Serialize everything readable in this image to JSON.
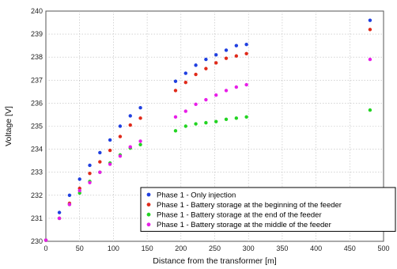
{
  "chart_data": {
    "type": "scatter",
    "xlabel": "Distance from the transformer [m]",
    "ylabel": "Voltage [V]",
    "xlim": [
      0,
      500
    ],
    "ylim": [
      230,
      240
    ],
    "xticks": [
      0,
      50,
      100,
      150,
      200,
      250,
      300,
      350,
      400,
      450,
      500
    ],
    "yticks": [
      230,
      231,
      232,
      233,
      234,
      235,
      236,
      237,
      238,
      239,
      240
    ],
    "grid": true,
    "legend_position": "bottom-right",
    "series": [
      {
        "name": "Phase 1 - Only injection",
        "color": "#1f3fe0",
        "points": [
          [
            0,
            230.05
          ],
          [
            20,
            231.25
          ],
          [
            35,
            232.0
          ],
          [
            50,
            232.7
          ],
          [
            65,
            233.3
          ],
          [
            80,
            233.85
          ],
          [
            95,
            234.4
          ],
          [
            110,
            235.0
          ],
          [
            125,
            235.45
          ],
          [
            140,
            235.8
          ],
          [
            192,
            236.95
          ],
          [
            207,
            237.3
          ],
          [
            222,
            237.65
          ],
          [
            237,
            237.9
          ],
          [
            252,
            238.1
          ],
          [
            267,
            238.3
          ],
          [
            282,
            238.5
          ],
          [
            297,
            238.55
          ],
          [
            480,
            239.6
          ]
        ]
      },
      {
        "name": "Phase 1 - Battery storage at the beginning of the feeder",
        "color": "#e02a1a",
        "points": [
          [
            0,
            230.05
          ],
          [
            20,
            231.0
          ],
          [
            35,
            231.65
          ],
          [
            50,
            232.3
          ],
          [
            65,
            232.95
          ],
          [
            80,
            233.45
          ],
          [
            95,
            233.95
          ],
          [
            110,
            234.55
          ],
          [
            125,
            235.05
          ],
          [
            140,
            235.35
          ],
          [
            192,
            236.55
          ],
          [
            207,
            236.9
          ],
          [
            222,
            237.25
          ],
          [
            237,
            237.5
          ],
          [
            252,
            237.75
          ],
          [
            267,
            237.95
          ],
          [
            282,
            238.05
          ],
          [
            297,
            238.15
          ],
          [
            480,
            239.2
          ]
        ]
      },
      {
        "name": "Phase 1 - Battery storage at the end of the feeder",
        "color": "#22d422",
        "points": [
          [
            0,
            230.05
          ],
          [
            20,
            231.0
          ],
          [
            35,
            231.6
          ],
          [
            50,
            232.1
          ],
          [
            65,
            232.6
          ],
          [
            80,
            233.0
          ],
          [
            95,
            233.4
          ],
          [
            110,
            233.75
          ],
          [
            125,
            234.05
          ],
          [
            140,
            234.2
          ],
          [
            192,
            234.8
          ],
          [
            207,
            235.0
          ],
          [
            222,
            235.1
          ],
          [
            237,
            235.15
          ],
          [
            252,
            235.2
          ],
          [
            267,
            235.3
          ],
          [
            282,
            235.35
          ],
          [
            297,
            235.4
          ],
          [
            480,
            235.7
          ]
        ]
      },
      {
        "name": "Phase 1 - Battery storage at the middle of the feeder",
        "color": "#e81ee8",
        "points": [
          [
            0,
            230.05
          ],
          [
            20,
            231.0
          ],
          [
            35,
            231.6
          ],
          [
            50,
            232.2
          ],
          [
            65,
            232.55
          ],
          [
            80,
            233.0
          ],
          [
            95,
            233.35
          ],
          [
            110,
            233.7
          ],
          [
            125,
            234.1
          ],
          [
            140,
            234.35
          ],
          [
            192,
            235.4
          ],
          [
            207,
            235.65
          ],
          [
            222,
            235.95
          ],
          [
            237,
            236.15
          ],
          [
            252,
            236.35
          ],
          [
            267,
            236.55
          ],
          [
            282,
            236.7
          ],
          [
            297,
            236.8
          ],
          [
            480,
            237.9
          ]
        ]
      }
    ]
  }
}
